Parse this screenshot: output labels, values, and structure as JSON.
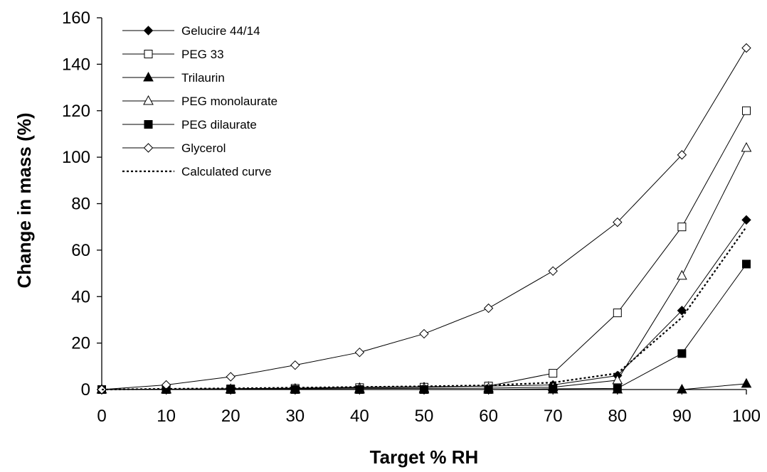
{
  "chart_data": {
    "type": "line",
    "title": "",
    "xlabel": "Target % RH",
    "ylabel": "Change in mass (%)",
    "xlim": [
      0,
      100
    ],
    "ylim": [
      0,
      160
    ],
    "x_ticks": [
      0,
      10,
      20,
      30,
      40,
      50,
      60,
      70,
      80,
      90,
      100
    ],
    "y_ticks": [
      0,
      20,
      40,
      60,
      80,
      100,
      120,
      140,
      160
    ],
    "grid": false,
    "legend_position": "top-left",
    "x": [
      0,
      10,
      20,
      30,
      40,
      50,
      60,
      70,
      80,
      90,
      100
    ],
    "series": [
      {
        "name": "Gelucire 44/14",
        "marker": "filled-diamond",
        "line": "solid",
        "values": [
          0,
          0.2,
          0.4,
          0.6,
          1.0,
          1.2,
          1.5,
          2,
          6,
          34,
          73
        ]
      },
      {
        "name": "PEG 33",
        "marker": "open-square",
        "line": "solid",
        "values": [
          0,
          0.1,
          0.3,
          0.5,
          0.8,
          1.0,
          1.5,
          7,
          33,
          70,
          120
        ]
      },
      {
        "name": "Trilaurin",
        "marker": "filled-triangle",
        "line": "solid",
        "values": [
          0,
          0,
          0,
          0,
          0,
          0,
          0,
          0,
          0,
          0,
          2.5
        ]
      },
      {
        "name": "PEG monolaurate",
        "marker": "open-triangle",
        "line": "solid",
        "values": [
          0,
          0.1,
          0.2,
          0.3,
          0.4,
          0.5,
          0.6,
          1,
          4,
          49,
          104
        ]
      },
      {
        "name": "PEG dilaurate",
        "marker": "filled-square",
        "line": "solid",
        "values": [
          0,
          0,
          0,
          0,
          0,
          0,
          0,
          0.3,
          0.5,
          15.5,
          54
        ]
      },
      {
        "name": "Glycerol",
        "marker": "open-diamond",
        "line": "solid",
        "values": [
          0,
          2,
          5.5,
          10.5,
          16,
          24,
          35,
          51,
          72,
          101,
          147
        ]
      },
      {
        "name": "Calculated curve",
        "marker": "none",
        "line": "dotted",
        "values": [
          0,
          0.3,
          0.5,
          0.8,
          1.1,
          1.4,
          1.8,
          3,
          7,
          31,
          70
        ]
      }
    ]
  }
}
